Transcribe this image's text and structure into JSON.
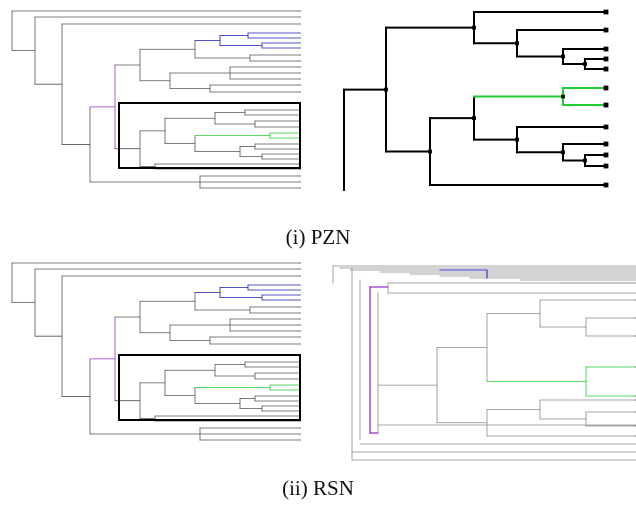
{
  "figure": {
    "panels": [
      {
        "caption": "(i) PZN"
      },
      {
        "caption": "(ii) RSN"
      }
    ],
    "colors": {
      "tree": "#555555",
      "tree_bold": "#000000",
      "blue_clade": "#1a1ab8",
      "green_clade": "#22cc33",
      "purple_clade": "#9b30c8",
      "highlight_box": "#000000"
    }
  }
}
